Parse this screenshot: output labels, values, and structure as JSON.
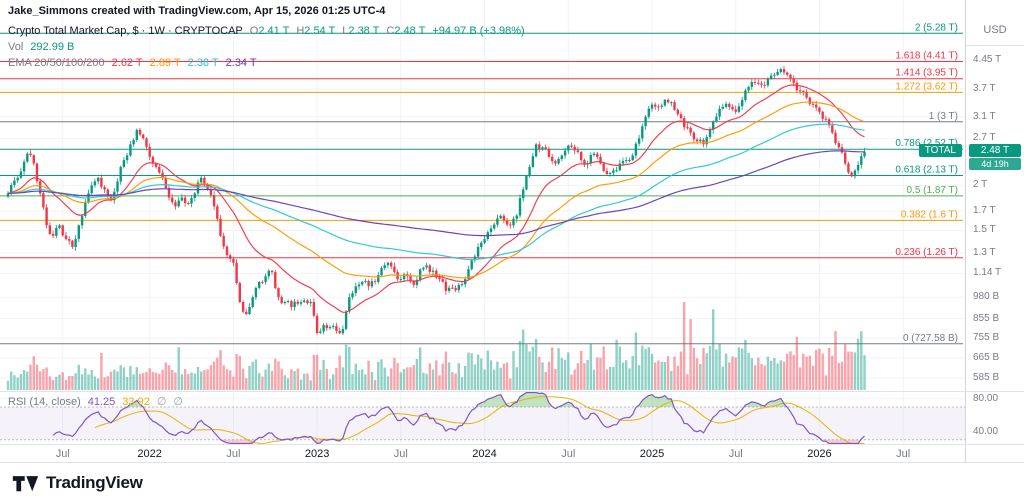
{
  "attribution": "Jake_Simmons created with TradingView.com, Apr 15, 2026 01:25 UTC-4",
  "legend": {
    "title": "Crypto Total Market Cap, $ · 1W · CRYPTOCAP",
    "ohlc": {
      "o_k": "O",
      "o": "2.41 T",
      "h_k": "H",
      "h": "2.54 T",
      "l_k": "L",
      "l": "2.38 T",
      "c_k": "C",
      "c": "2.48 T",
      "change": "+94.97 B (+3.98%)"
    },
    "vol_label": "Vol",
    "vol_value": "292.99 B",
    "ema_label": "EMA 20/50/100/200"
  },
  "footer": {
    "brand": "TradingView"
  },
  "chart_data": {
    "type": "candlestick",
    "title": "Crypto Total Market Cap, $ · 1W · CRYPTOCAP",
    "ticker": "TOTAL",
    "interval": "1W",
    "unit": "USD (trillions)",
    "weeks": 267,
    "up_color": "#089981",
    "down_color": "#f23645",
    "close_anchors_by_week": [
      [
        0,
        1.9
      ],
      [
        3,
        2.1
      ],
      [
        6,
        2.45
      ],
      [
        8,
        2.3
      ],
      [
        10,
        1.9
      ],
      [
        12,
        1.55
      ],
      [
        14,
        1.45
      ],
      [
        16,
        1.55
      ],
      [
        18,
        1.42
      ],
      [
        20,
        1.35
      ],
      [
        22,
        1.55
      ],
      [
        24,
        1.8
      ],
      [
        26,
        2.0
      ],
      [
        28,
        2.1
      ],
      [
        30,
        1.95
      ],
      [
        32,
        1.82
      ],
      [
        34,
        2.05
      ],
      [
        36,
        2.35
      ],
      [
        38,
        2.6
      ],
      [
        40,
        2.85
      ],
      [
        42,
        2.7
      ],
      [
        44,
        2.4
      ],
      [
        46,
        2.25
      ],
      [
        48,
        2.1
      ],
      [
        50,
        1.85
      ],
      [
        52,
        1.75
      ],
      [
        54,
        1.85
      ],
      [
        56,
        1.78
      ],
      [
        58,
        1.9
      ],
      [
        60,
        2.1
      ],
      [
        62,
        1.95
      ],
      [
        64,
        1.75
      ],
      [
        66,
        1.45
      ],
      [
        68,
        1.28
      ],
      [
        70,
        1.22
      ],
      [
        72,
        0.95
      ],
      [
        74,
        0.88
      ],
      [
        76,
        0.98
      ],
      [
        78,
        1.08
      ],
      [
        80,
        1.12
      ],
      [
        82,
        1.15
      ],
      [
        84,
        0.98
      ],
      [
        86,
        0.95
      ],
      [
        88,
        0.92
      ],
      [
        90,
        0.94
      ],
      [
        92,
        0.96
      ],
      [
        94,
        0.95
      ],
      [
        96,
        0.78
      ],
      [
        98,
        0.82
      ],
      [
        100,
        0.81
      ],
      [
        102,
        0.79
      ],
      [
        104,
        0.8
      ],
      [
        106,
        0.98
      ],
      [
        108,
        1.05
      ],
      [
        110,
        1.08
      ],
      [
        112,
        1.05
      ],
      [
        114,
        1.08
      ],
      [
        116,
        1.18
      ],
      [
        118,
        1.22
      ],
      [
        120,
        1.15
      ],
      [
        122,
        1.1
      ],
      [
        124,
        1.12
      ],
      [
        126,
        1.06
      ],
      [
        128,
        1.17
      ],
      [
        130,
        1.2
      ],
      [
        132,
        1.16
      ],
      [
        134,
        1.1
      ],
      [
        136,
        1.02
      ],
      [
        138,
        1.04
      ],
      [
        140,
        1.06
      ],
      [
        142,
        1.1
      ],
      [
        144,
        1.24
      ],
      [
        146,
        1.35
      ],
      [
        148,
        1.42
      ],
      [
        150,
        1.52
      ],
      [
        152,
        1.62
      ],
      [
        154,
        1.6
      ],
      [
        156,
        1.55
      ],
      [
        158,
        1.65
      ],
      [
        160,
        1.95
      ],
      [
        162,
        2.25
      ],
      [
        164,
        2.6
      ],
      [
        166,
        2.55
      ],
      [
        168,
        2.4
      ],
      [
        170,
        2.3
      ],
      [
        172,
        2.42
      ],
      [
        174,
        2.58
      ],
      [
        176,
        2.5
      ],
      [
        178,
        2.35
      ],
      [
        180,
        2.3
      ],
      [
        182,
        2.45
      ],
      [
        184,
        2.3
      ],
      [
        186,
        2.15
      ],
      [
        188,
        2.2
      ],
      [
        190,
        2.3
      ],
      [
        192,
        2.35
      ],
      [
        194,
        2.42
      ],
      [
        196,
        2.7
      ],
      [
        198,
        3.1
      ],
      [
        200,
        3.35
      ],
      [
        202,
        3.3
      ],
      [
        204,
        3.45
      ],
      [
        206,
        3.4
      ],
      [
        208,
        3.15
      ],
      [
        210,
        2.9
      ],
      [
        212,
        2.8
      ],
      [
        214,
        2.65
      ],
      [
        216,
        2.6
      ],
      [
        218,
        2.85
      ],
      [
        220,
        3.1
      ],
      [
        222,
        3.3
      ],
      [
        224,
        3.3
      ],
      [
        226,
        3.2
      ],
      [
        228,
        3.45
      ],
      [
        230,
        3.75
      ],
      [
        232,
        3.85
      ],
      [
        234,
        3.8
      ],
      [
        236,
        3.95
      ],
      [
        238,
        4.05
      ],
      [
        240,
        4.2
      ],
      [
        242,
        4.05
      ],
      [
        244,
        3.85
      ],
      [
        246,
        3.65
      ],
      [
        248,
        3.5
      ],
      [
        250,
        3.35
      ],
      [
        252,
        3.2
      ],
      [
        254,
        3.05
      ],
      [
        256,
        2.8
      ],
      [
        258,
        2.55
      ],
      [
        260,
        2.3
      ],
      [
        262,
        2.12
      ],
      [
        264,
        2.28
      ],
      [
        265,
        2.41
      ],
      [
        266,
        2.48
      ]
    ],
    "last_candle": {
      "o": 2.41,
      "h": 2.54,
      "l": 2.38,
      "c": 2.48
    },
    "volume": {
      "current_b": 292.99
    },
    "ema_overlays": [
      {
        "period": 20,
        "color": "#f23645",
        "legend_value": "2.62 T"
      },
      {
        "period": 50,
        "color": "#ff9800",
        "legend_value": "2.89 T"
      },
      {
        "period": 100,
        "color": "#26c6da",
        "legend_value": "2.38 T"
      },
      {
        "period": 200,
        "color": "#673ab7",
        "legend_value": "2.34 T"
      }
    ],
    "fib_levels": [
      {
        "label": "2 (5.28 T)",
        "value": 5.28,
        "color": "#089981"
      },
      {
        "label": "1.618 (4.41 T)",
        "value": 4.41,
        "color": "#f23645"
      },
      {
        "label": "1.414 (3.95 T)",
        "value": 3.95,
        "color": "#f23645"
      },
      {
        "label": "1.272 (3.62 T)",
        "value": 3.62,
        "color": "#ff9800"
      },
      {
        "label": "1 (3 T)",
        "value": 3.0,
        "color": "#787b86"
      },
      {
        "label": "0.786 (2.52 T)",
        "value": 2.52,
        "color": "#089981"
      },
      {
        "label": "0.618 (2.13 T)",
        "value": 2.13,
        "color": "#089981"
      },
      {
        "label": "0.5 (1.87 T)",
        "value": 1.87,
        "color": "#4caf50"
      },
      {
        "label": "0.382 (1.6 T)",
        "value": 1.6,
        "color": "#ff9800"
      },
      {
        "label": "0.236 (1.26 T)",
        "value": 1.26,
        "color": "#f23645"
      },
      {
        "label": "0 (727.58 B)",
        "value": 0.72758,
        "color": "#787b86"
      }
    ],
    "y_axis": {
      "unit": "USD",
      "ticks": [
        {
          "text": "4.45 T",
          "v": 4.45
        },
        {
          "text": "3.7 T",
          "v": 3.7
        },
        {
          "text": "3.1 T",
          "v": 3.1
        },
        {
          "text": "2.7 T",
          "v": 2.7
        },
        {
          "text": "2 T",
          "v": 2.0
        },
        {
          "text": "1.7 T",
          "v": 1.7
        },
        {
          "text": "1.5 T",
          "v": 1.5
        },
        {
          "text": "1.3 T",
          "v": 1.3
        },
        {
          "text": "1.14 T",
          "v": 1.14
        },
        {
          "text": "980 B",
          "v": 0.98
        },
        {
          "text": "855 B",
          "v": 0.855
        },
        {
          "text": "755 B",
          "v": 0.755
        },
        {
          "text": "665 B",
          "v": 0.665
        },
        {
          "text": "585 B",
          "v": 0.585
        }
      ]
    },
    "x_axis": {
      "labels": [
        {
          "text": "Jul",
          "week": 17,
          "major": false
        },
        {
          "text": "2022",
          "week": 44,
          "major": true
        },
        {
          "text": "Jul",
          "week": 70,
          "major": false
        },
        {
          "text": "2023",
          "week": 96,
          "major": true
        },
        {
          "text": "Jul",
          "week": 122,
          "major": false
        },
        {
          "text": "2024",
          "week": 148,
          "major": true
        },
        {
          "text": "Jul",
          "week": 174,
          "major": false
        },
        {
          "text": "2025",
          "week": 200,
          "major": true
        },
        {
          "text": "Jul",
          "week": 226,
          "major": false
        },
        {
          "text": "2026",
          "week": 252,
          "major": true
        },
        {
          "text": "Jul",
          "week": 278,
          "major": false
        }
      ]
    },
    "rsi": {
      "label": "RSI (14, close)",
      "period": 14,
      "current": 41.25,
      "current_text": "41.25",
      "ma": 33.92,
      "ma_text": "33.92",
      "line_color": "#7e57c2",
      "ma_color": "#e3b505",
      "band": [
        30,
        70
      ],
      "axis_ticks": [
        {
          "text": "80.00",
          "v": 80
        },
        {
          "text": "40.00",
          "v": 40
        }
      ],
      "empty_symbol": "∅"
    },
    "current_price": {
      "label": "TOTAL",
      "text": "2.48 T",
      "value": 2.48,
      "countdown": "4d 19h",
      "color": "#089981"
    }
  }
}
